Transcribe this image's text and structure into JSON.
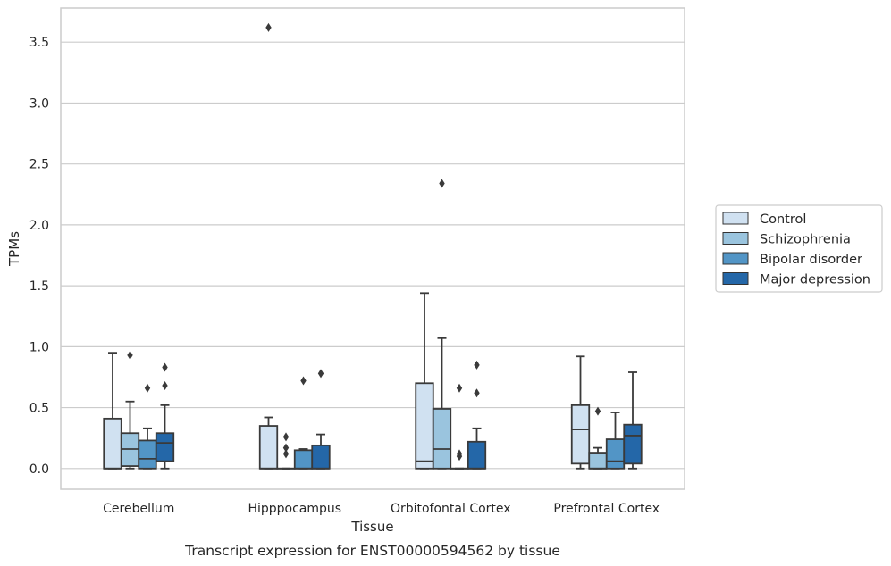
{
  "caption": "Transcript expression for ENST00000594562 by tissue",
  "chart_data": {
    "type": "box",
    "title": "",
    "xlabel": "Tissue",
    "ylabel": "TPMs",
    "ylim": [
      -0.17,
      3.78
    ],
    "yticks": [
      0.0,
      0.5,
      1.0,
      1.5,
      2.0,
      2.5,
      3.0,
      3.5
    ],
    "ytick_labels": [
      "0.0",
      "0.5",
      "1.0",
      "1.5",
      "2.0",
      "2.5",
      "3.0",
      "3.5"
    ],
    "grid": "horizontal",
    "legend_position": "right",
    "categories": [
      "Cerebellum",
      "Hipppocampus",
      "Orbitofontal Cortex",
      "Prefrontal Cortex"
    ],
    "series": [
      {
        "name": "Control",
        "color": "#d0e1f1",
        "boxes": [
          {
            "whislo": 0.0,
            "q1": 0.0,
            "med": 0.0,
            "q3": 0.41,
            "whishi": 0.95,
            "fliers": []
          },
          {
            "whislo": 0.0,
            "q1": 0.0,
            "med": 0.0,
            "q3": 0.35,
            "whishi": 0.42,
            "fliers": [
              3.62
            ]
          },
          {
            "whislo": 0.0,
            "q1": 0.0,
            "med": 0.06,
            "q3": 0.7,
            "whishi": 1.44,
            "fliers": []
          },
          {
            "whislo": 0.0,
            "q1": 0.04,
            "med": 0.32,
            "q3": 0.52,
            "whishi": 0.92,
            "fliers": []
          }
        ]
      },
      {
        "name": "Schizophrenia",
        "color": "#9ac4de",
        "boxes": [
          {
            "whislo": 0.0,
            "q1": 0.02,
            "med": 0.16,
            "q3": 0.29,
            "whishi": 0.55,
            "fliers": [
              0.93
            ]
          },
          {
            "whislo": 0.0,
            "q1": 0.0,
            "med": 0.0,
            "q3": 0.0,
            "whishi": 0.0,
            "fliers": [
              0.12,
              0.17,
              0.26
            ]
          },
          {
            "whislo": 0.0,
            "q1": 0.0,
            "med": 0.16,
            "q3": 0.49,
            "whishi": 1.07,
            "fliers": [
              2.34
            ]
          },
          {
            "whislo": 0.0,
            "q1": 0.0,
            "med": 0.0,
            "q3": 0.13,
            "whishi": 0.17,
            "fliers": [
              0.47
            ]
          }
        ]
      },
      {
        "name": "Bipolar disorder",
        "color": "#5295c6",
        "boxes": [
          {
            "whislo": 0.0,
            "q1": 0.0,
            "med": 0.08,
            "q3": 0.23,
            "whishi": 0.33,
            "fliers": [
              0.66
            ]
          },
          {
            "whislo": 0.0,
            "q1": 0.0,
            "med": 0.0,
            "q3": 0.15,
            "whishi": 0.16,
            "fliers": [
              0.72
            ]
          },
          {
            "whislo": 0.0,
            "q1": 0.0,
            "med": 0.0,
            "q3": 0.0,
            "whishi": 0.0,
            "fliers": [
              0.1,
              0.12,
              0.66
            ]
          },
          {
            "whislo": 0.0,
            "q1": 0.0,
            "med": 0.06,
            "q3": 0.24,
            "whishi": 0.46,
            "fliers": []
          }
        ]
      },
      {
        "name": "Major depression",
        "color": "#2467a8",
        "boxes": [
          {
            "whislo": 0.0,
            "q1": 0.06,
            "med": 0.21,
            "q3": 0.29,
            "whishi": 0.52,
            "fliers": [
              0.68,
              0.83
            ]
          },
          {
            "whislo": 0.0,
            "q1": 0.0,
            "med": 0.0,
            "q3": 0.19,
            "whishi": 0.28,
            "fliers": [
              0.78
            ]
          },
          {
            "whislo": 0.0,
            "q1": 0.0,
            "med": 0.0,
            "q3": 0.22,
            "whishi": 0.33,
            "fliers": [
              0.62,
              0.85
            ]
          },
          {
            "whislo": 0.0,
            "q1": 0.04,
            "med": 0.27,
            "q3": 0.36,
            "whishi": 0.79,
            "fliers": []
          }
        ]
      }
    ]
  },
  "colors": {
    "grid": "#cccccc",
    "spine": "#cccccc",
    "box_edge": "#3a3a3a",
    "text": "#262626",
    "legend_border": "#cccccc"
  }
}
